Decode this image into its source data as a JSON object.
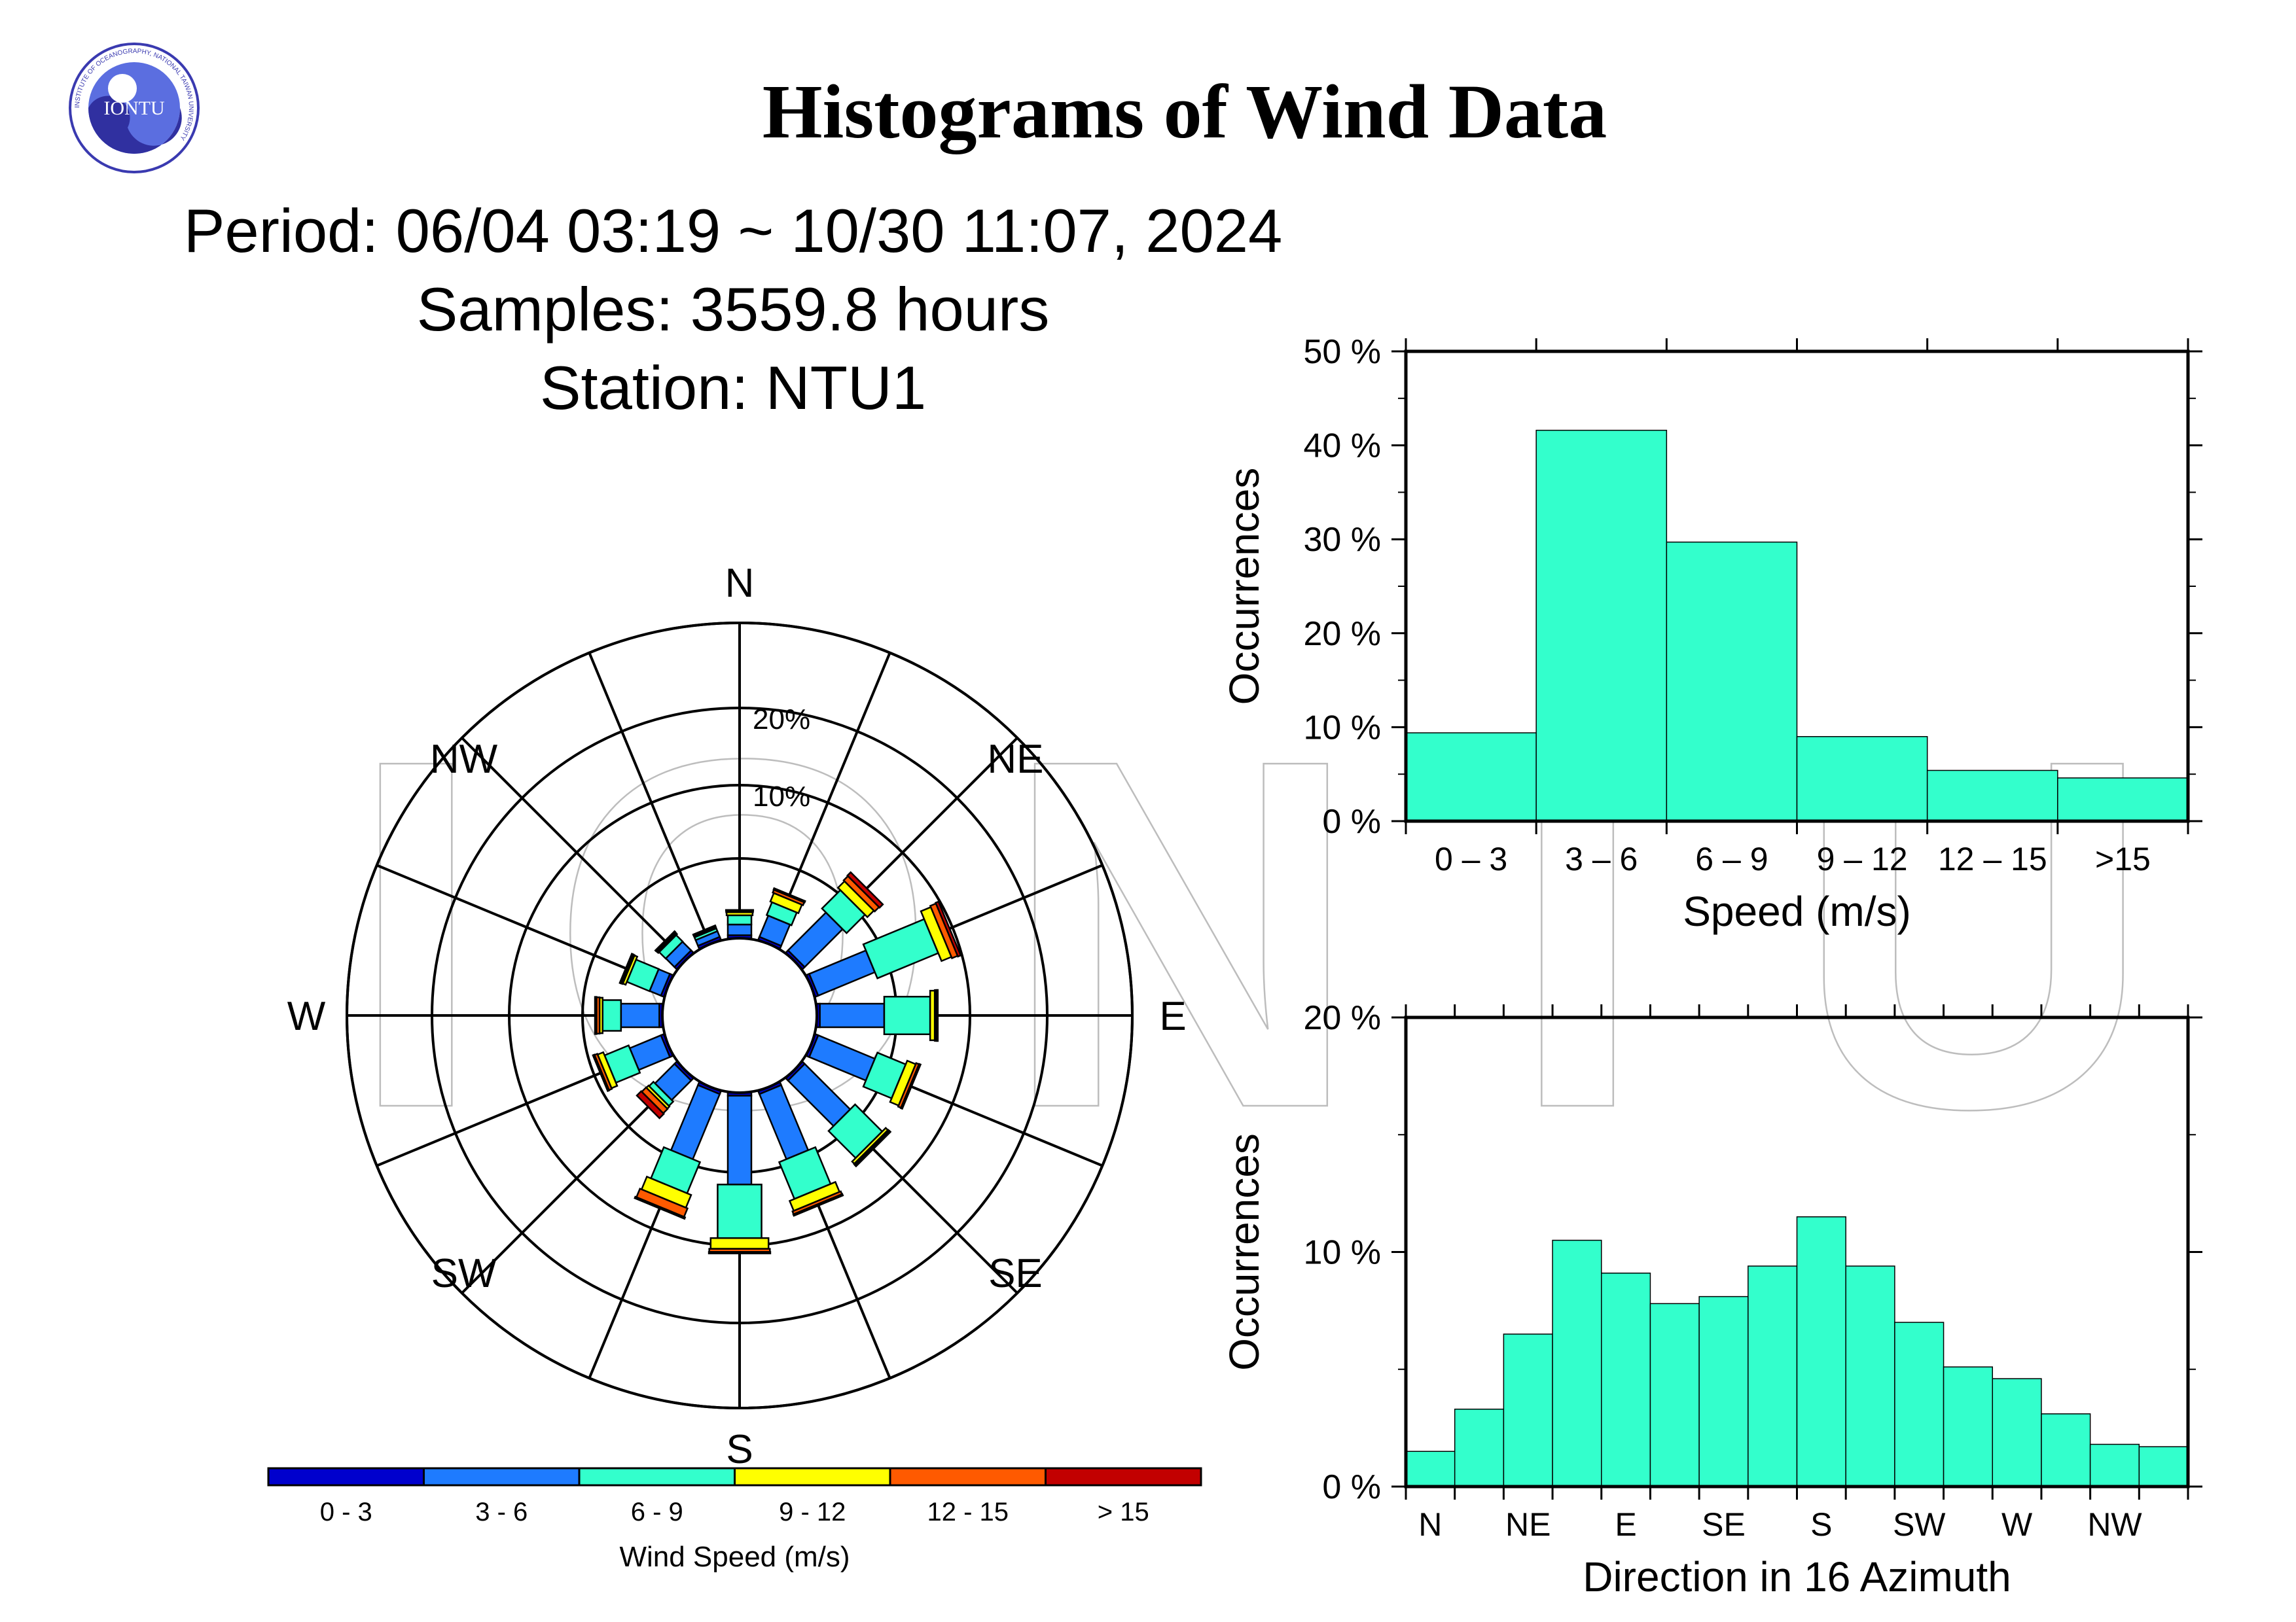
{
  "logo": {
    "text": "IONTU",
    "ring_text": "INSTITUTE OF OCEANOGRAPHY, NATIONAL TAIWAN UNIVERSITY"
  },
  "header": {
    "title": "Histograms of Wind Data",
    "period": "Period: 06/04 03:19 ~ 10/30 11:07, 2024",
    "samples": "Samples: 3559.8 hours",
    "station": "Station: NTU1"
  },
  "watermark": "IONTU",
  "colors": {
    "speed_bins": [
      "#0000cd",
      "#1e7bff",
      "#33ffcc",
      "#ffff00",
      "#ff5a00",
      "#c20000"
    ],
    "histogram_fill": "#33ffcc"
  },
  "chart_data": [
    {
      "type": "windrose",
      "directions": [
        "N",
        "NNE",
        "NE",
        "ENE",
        "E",
        "ESE",
        "SE",
        "SSE",
        "S",
        "SSW",
        "SW",
        "WSW",
        "W",
        "WNW",
        "NW",
        "NNW"
      ],
      "compass_labels": [
        "N",
        "NE",
        "E",
        "SE",
        "S",
        "SW",
        "W",
        "NW"
      ],
      "ring_labels": [
        "10%",
        "20%"
      ],
      "rlim": [
        0,
        20
      ],
      "speed_bins": [
        "0 -  3",
        "3 -  6",
        "6 -  9",
        "9 - 12",
        "12 - 15",
        "> 15"
      ],
      "legend_title": "Wind Speed (m/s)",
      "series": [
        {
          "name": "0 -  3",
          "values": [
            0.2,
            0.2,
            0.2,
            0.2,
            0.2,
            0.2,
            0.2,
            0.2,
            0.2,
            0.2,
            0.2,
            0.2,
            0.2,
            0.2,
            0.2,
            0.2
          ]
        },
        {
          "name": "3 -  6",
          "values": [
            0.7,
            1.5,
            3.5,
            4.0,
            4.2,
            4.0,
            4.2,
            4.6,
            5.8,
            4.6,
            1.8,
            2.2,
            2.5,
            0.8,
            0.8,
            0.4
          ]
        },
        {
          "name": "6 -  9",
          "values": [
            0.6,
            0.9,
            1.7,
            4.3,
            3.0,
            2.0,
            2.5,
            2.6,
            3.5,
            2.2,
            0.4,
            1.7,
            1.2,
            1.6,
            0.6,
            0.2
          ]
        },
        {
          "name": "9 - 12",
          "values": [
            0.2,
            0.6,
            0.6,
            0.7,
            0.3,
            0.6,
            0.2,
            0.7,
            0.7,
            0.9,
            0.2,
            0.4,
            0.2,
            0.2,
            0.1,
            0.1
          ]
        },
        {
          "name": "12 - 15",
          "values": [
            0.1,
            0.2,
            0.4,
            0.4,
            0.1,
            0.2,
            0.1,
            0.2,
            0.2,
            0.6,
            0.4,
            0.2,
            0.2,
            0.1,
            0.1,
            0.05
          ]
        },
        {
          "name": "> 15",
          "values": [
            0.05,
            0.1,
            0.3,
            0.2,
            0.1,
            0.1,
            0.1,
            0.1,
            0.1,
            0.1,
            0.4,
            0.1,
            0.1,
            0.1,
            0.05,
            0.05
          ]
        }
      ]
    },
    {
      "type": "bar",
      "categories": [
        "0 – 3",
        "3 – 6",
        "6 – 9",
        "9 – 12",
        "12 – 15",
        ">15"
      ],
      "values": [
        9.4,
        41.6,
        29.7,
        9.0,
        5.4,
        4.6
      ],
      "xlabel": "Speed (m/s)",
      "ylabel": "Occurrences",
      "ylim": [
        0,
        50
      ],
      "yticks": [
        "0 %",
        "10 %",
        "20 %",
        "30 %",
        "40 %",
        "50 %"
      ]
    },
    {
      "type": "bar",
      "categories": [
        "N",
        "NNE",
        "NE",
        "ENE",
        "E",
        "ESE",
        "SE",
        "SSE",
        "S",
        "SSW",
        "SW",
        "WSW",
        "W",
        "WNW",
        "NW",
        "NNW"
      ],
      "tick_labels": [
        "N",
        "NE",
        "E",
        "SE",
        "S",
        "SW",
        "W",
        "NW"
      ],
      "values": [
        1.5,
        3.3,
        6.5,
        10.5,
        9.1,
        7.8,
        8.1,
        9.4,
        11.5,
        9.4,
        7.0,
        5.1,
        4.6,
        3.1,
        1.8,
        1.7
      ],
      "xlabel": "Direction in 16 Azimuth",
      "ylabel": "Occurrences",
      "ylim": [
        0,
        20
      ],
      "yticks": [
        "0 %",
        "10 %",
        "20 %"
      ]
    }
  ]
}
